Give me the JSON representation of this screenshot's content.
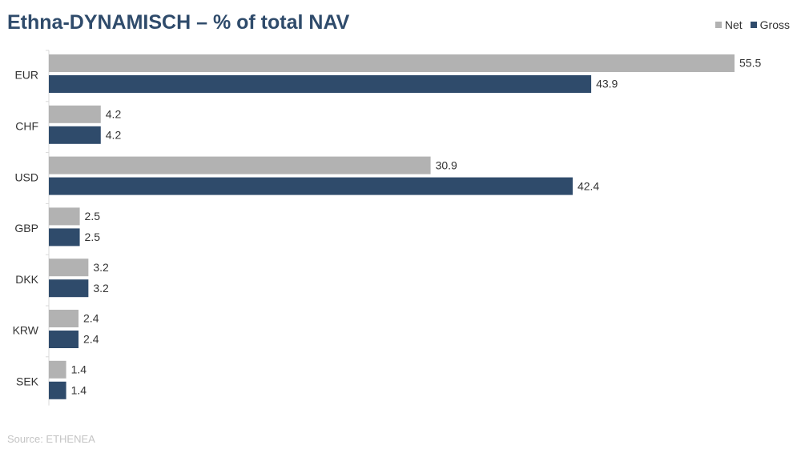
{
  "title": "Ethna-DYNAMISCH – % of total NAV",
  "source": "Source: ETHENEA",
  "legend": {
    "net_label": "Net",
    "gross_label": "Gross"
  },
  "colors": {
    "net": "#b2b2b2",
    "gross": "#2f4b6b",
    "title": "#2f4b6b"
  },
  "chart_data": {
    "type": "bar",
    "orientation": "horizontal",
    "title": "Ethna-DYNAMISCH – % of total NAV",
    "categories": [
      "EUR",
      "CHF",
      "USD",
      "GBP",
      "DKK",
      "KRW",
      "SEK"
    ],
    "series": [
      {
        "name": "Net",
        "values": [
          55.5,
          4.2,
          30.9,
          2.5,
          3.2,
          2.4,
          1.4
        ]
      },
      {
        "name": "Gross",
        "values": [
          43.9,
          4.2,
          42.4,
          2.5,
          3.2,
          2.4,
          1.4
        ]
      }
    ],
    "xlim": [
      0,
      55.5
    ],
    "legend_position": "top-right",
    "grid": false,
    "data_labels": true
  }
}
